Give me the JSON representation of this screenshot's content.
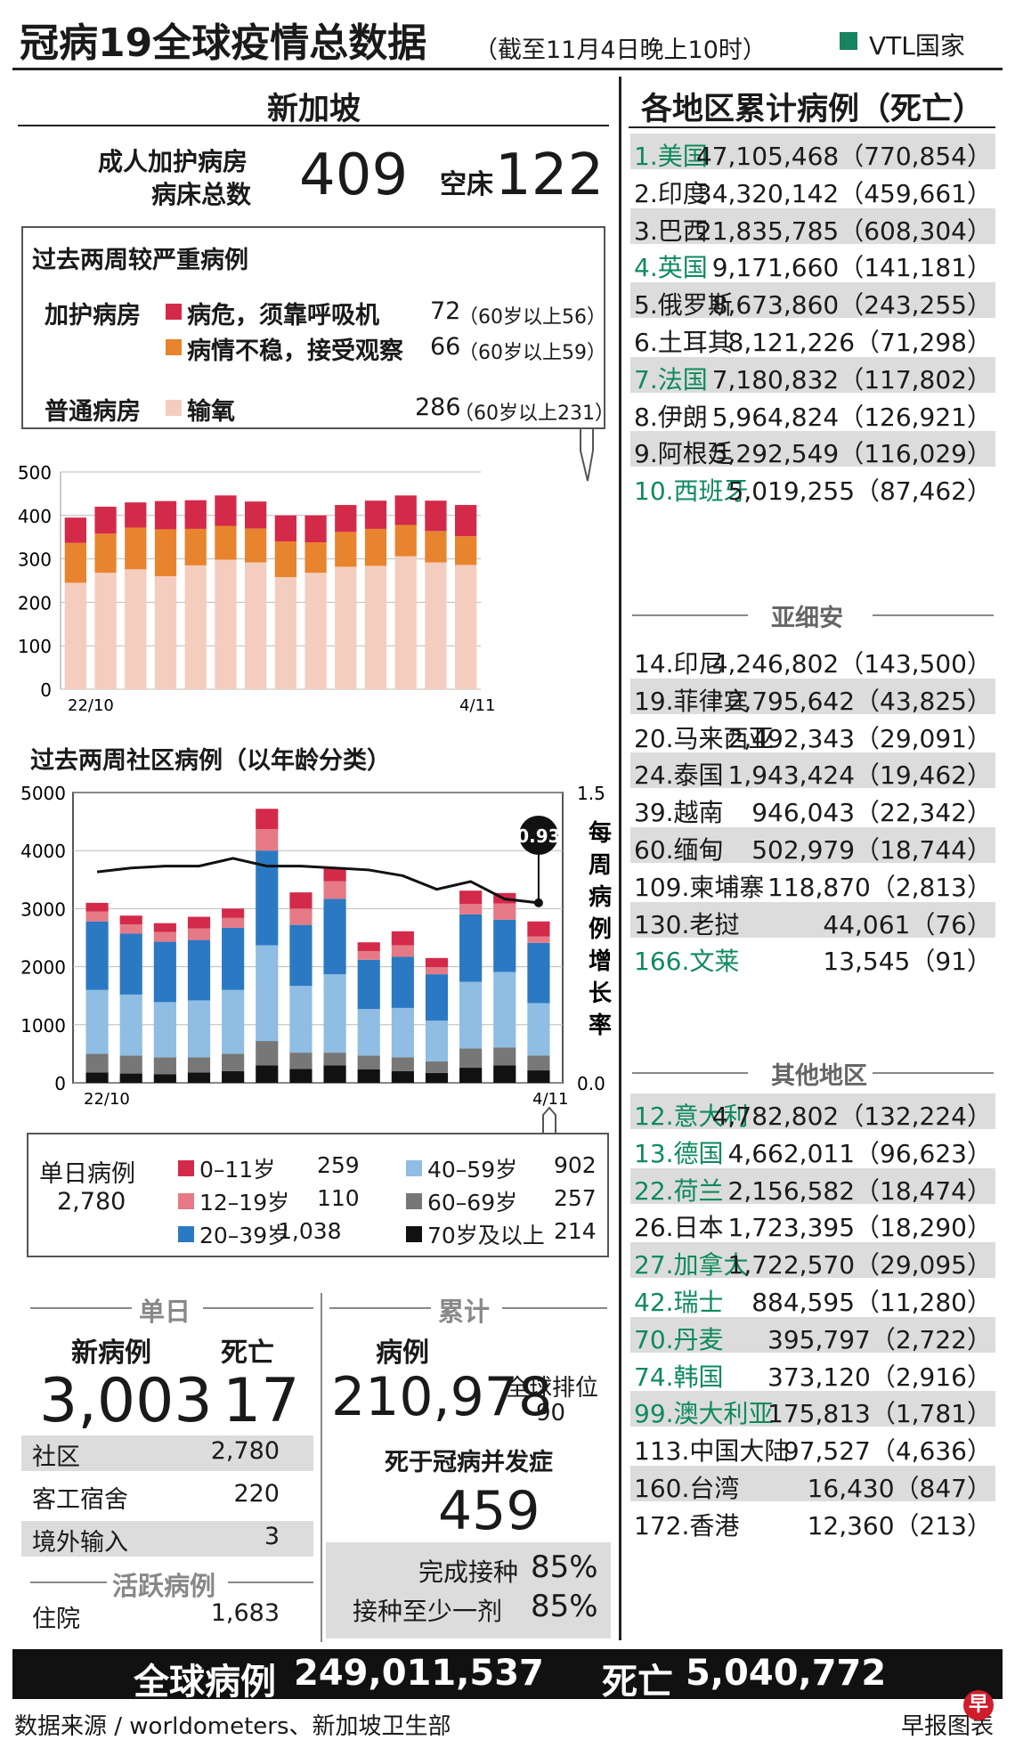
{
  "header": {
    "title": "冠病19全球疫情总数据",
    "subtitle": "（截至11月4日晚上10时）",
    "vtl_legend": "VTL国家",
    "vtl_color": "#17845d"
  },
  "singapore": {
    "title": "新加坡",
    "icu_label_1": "成人加护病房",
    "icu_label_2": "病床总数",
    "icu_total": "409",
    "empty_label": "空床",
    "empty_beds": "122"
  },
  "severe": {
    "title": "过去两周较严重病例",
    "icu_group": "加护病房",
    "ward_group": "普通病房",
    "items": [
      {
        "label": "病危，须靠呼吸机",
        "value": "72",
        "note": "（60岁以上56）",
        "color": "#d42a4a"
      },
      {
        "label": "病情不稳，接受观察",
        "value": "66",
        "note": "（60岁以上59）",
        "color": "#e8842e"
      },
      {
        "label": "输氧",
        "value": "286",
        "note": "（60岁以上231）",
        "color": "#f4cdbf"
      }
    ]
  },
  "chart_data": [
    {
      "type": "bar",
      "stacked": true,
      "x_start_label": "22/10",
      "x_end_label": "4/11",
      "ylim": [
        0,
        500
      ],
      "yticks": [
        "0",
        "100",
        "200",
        "300",
        "400",
        "500"
      ],
      "grid": true,
      "series": [
        {
          "name": "输氧",
          "color": "#f4cdbf",
          "values": [
            245,
            268,
            276,
            260,
            285,
            298,
            292,
            258,
            268,
            282,
            284,
            306,
            292,
            286
          ]
        },
        {
          "name": "病情不稳，接受观察",
          "color": "#e8842e",
          "values": [
            92,
            90,
            96,
            108,
            84,
            78,
            78,
            82,
            70,
            80,
            85,
            72,
            72,
            66
          ]
        },
        {
          "name": "病危，须靠呼吸机",
          "color": "#d42a4a",
          "values": [
            58,
            62,
            58,
            65,
            66,
            70,
            62,
            60,
            62,
            62,
            65,
            68,
            70,
            72
          ]
        }
      ]
    },
    {
      "type": "bar",
      "stacked": true,
      "title": "过去两周社区病例（以年龄分类）",
      "x_start_label": "22/10",
      "x_end_label": "4/11",
      "ylim": [
        0,
        5000
      ],
      "yticks": [
        "0",
        "1000",
        "2000",
        "3000",
        "4000",
        "5000"
      ],
      "y2lim": [
        0,
        1.5
      ],
      "y2ticks": [
        "0.0",
        "1.5"
      ],
      "y2label": "每周病例增长率",
      "grid": true,
      "series": [
        {
          "name": "70岁及以上",
          "color": "#111111",
          "values": [
            180,
            160,
            150,
            180,
            200,
            300,
            240,
            300,
            230,
            200,
            170,
            260,
            300,
            214
          ]
        },
        {
          "name": "60-69岁",
          "color": "#777777",
          "values": [
            320,
            310,
            290,
            260,
            300,
            420,
            280,
            220,
            240,
            240,
            200,
            330,
            310,
            257
          ]
        },
        {
          "name": "40-59岁",
          "color": "#8fbde3",
          "values": [
            1100,
            1050,
            950,
            980,
            1100,
            1650,
            1150,
            1350,
            800,
            850,
            700,
            1150,
            1300,
            902
          ]
        },
        {
          "name": "20-39岁",
          "color": "#2b79c2",
          "values": [
            1180,
            1050,
            1040,
            1040,
            1070,
            1630,
            1050,
            1300,
            850,
            880,
            800,
            1160,
            900,
            1038
          ]
        },
        {
          "name": "12-19岁",
          "color": "#e57a86",
          "values": [
            170,
            160,
            170,
            200,
            170,
            370,
            280,
            300,
            150,
            200,
            120,
            180,
            280,
            110
          ]
        },
        {
          "name": "0-11岁",
          "color": "#d42a4a",
          "values": [
            150,
            150,
            150,
            200,
            160,
            350,
            280,
            230,
            150,
            240,
            160,
            230,
            180,
            259
          ]
        }
      ],
      "growth_rate": [
        1.09,
        1.11,
        1.12,
        1.12,
        1.16,
        1.12,
        1.12,
        1.11,
        1.1,
        1.07,
        1.0,
        1.04,
        0.95,
        0.93
      ],
      "growth_callout": "0.93"
    }
  ],
  "age_legend": {
    "title": "单日病例",
    "total": "2,780",
    "items": [
      {
        "label": "0–11岁",
        "value": "259",
        "color": "#d42a4a"
      },
      {
        "label": "12–19岁",
        "value": "110",
        "color": "#e57a86"
      },
      {
        "label": "20–39岁",
        "value": "1,038",
        "color": "#2b79c2"
      },
      {
        "label": "40–59岁",
        "value": "902",
        "color": "#8fbde3"
      },
      {
        "label": "60–69岁",
        "value": "257",
        "color": "#777777"
      },
      {
        "label": "70岁及以上",
        "value": "214",
        "color": "#111111"
      }
    ]
  },
  "daily": {
    "title": "单日",
    "new_label": "新病例",
    "new_value": "3,003",
    "death_label": "死亡",
    "death_value": "17",
    "rows": [
      {
        "label": "社区",
        "value": "2,780"
      },
      {
        "label": "客工宿舍",
        "value": "220"
      },
      {
        "label": "境外输入",
        "value": "3"
      }
    ],
    "active_title": "活跃病例",
    "hosp_label": "住院",
    "hosp_value": "1,683"
  },
  "cumulative": {
    "title": "累计",
    "cases_label": "病例",
    "cases_value": "210,978",
    "rank_label": "全球排位",
    "rank_value": "90",
    "deaths_label": "死于冠病并发症",
    "deaths_value": "459",
    "vacc_full_label": "完成接种",
    "vacc_full_value": "85%",
    "vacc_one_label": "接种至少一剂",
    "vacc_one_value": "85%"
  },
  "regions": {
    "title": "各地区累计病例（死亡）",
    "top": [
      {
        "name": "1.美国",
        "cases": "47,105,468",
        "deaths": "770,854",
        "vtl": true
      },
      {
        "name": "2.印度",
        "cases": "34,320,142",
        "deaths": "459,661",
        "vtl": false
      },
      {
        "name": "3.巴西",
        "cases": "21,835,785",
        "deaths": "608,304",
        "vtl": false
      },
      {
        "name": "4.英国",
        "cases": "9,171,660",
        "deaths": "141,181",
        "vtl": true
      },
      {
        "name": "5.俄罗斯",
        "cases": "8,673,860",
        "deaths": "243,255",
        "vtl": false
      },
      {
        "name": "6.土耳其",
        "cases": "8,121,226",
        "deaths": "71,298",
        "vtl": false
      },
      {
        "name": "7.法国",
        "cases": "7,180,832",
        "deaths": "117,802",
        "vtl": true
      },
      {
        "name": "8.伊朗",
        "cases": "5,964,824",
        "deaths": "126,921",
        "vtl": false
      },
      {
        "name": "9.阿根廷",
        "cases": "5,292,549",
        "deaths": "116,029",
        "vtl": false
      },
      {
        "name": "10.西班牙",
        "cases": "5,019,255",
        "deaths": "87,462",
        "vtl": true
      }
    ],
    "asean_title": "亚细安",
    "asean": [
      {
        "name": "14.印尼",
        "cases": "4,246,802",
        "deaths": "143,500",
        "vtl": false
      },
      {
        "name": "19.菲律宾",
        "cases": "2,795,642",
        "deaths": "43,825",
        "vtl": false
      },
      {
        "name": "20.马来西亚",
        "cases": "2,492,343",
        "deaths": "29,091",
        "vtl": false
      },
      {
        "name": "24.泰国",
        "cases": "1,943,424",
        "deaths": "19,462",
        "vtl": false
      },
      {
        "name": "39.越南",
        "cases": "946,043",
        "deaths": "22,342",
        "vtl": false
      },
      {
        "name": "60.缅甸",
        "cases": "502,979",
        "deaths": "18,744",
        "vtl": false
      },
      {
        "name": "109.柬埔寨",
        "cases": "118,870",
        "deaths": "2,813",
        "vtl": false
      },
      {
        "name": "130.老挝",
        "cases": "44,061",
        "deaths": "76",
        "vtl": false
      },
      {
        "name": "166.文莱",
        "cases": "13,545",
        "deaths": "91",
        "vtl": true
      }
    ],
    "other_title": "其他地区",
    "other": [
      {
        "name": "12.意大利",
        "cases": "4,782,802",
        "deaths": "132,224",
        "vtl": true
      },
      {
        "name": "13.德国",
        "cases": "4,662,011",
        "deaths": "96,623",
        "vtl": true
      },
      {
        "name": "22.荷兰",
        "cases": "2,156,582",
        "deaths": "18,474",
        "vtl": true
      },
      {
        "name": "26.日本",
        "cases": "1,723,395",
        "deaths": "18,290",
        "vtl": false
      },
      {
        "name": "27.加拿大",
        "cases": "1,722,570",
        "deaths": "29,095",
        "vtl": true
      },
      {
        "name": "42.瑞士",
        "cases": "884,595",
        "deaths": "11,280",
        "vtl": true
      },
      {
        "name": "70.丹麦",
        "cases": "395,797",
        "deaths": "2,722",
        "vtl": true
      },
      {
        "name": "74.韩国",
        "cases": "373,120",
        "deaths": "2,916",
        "vtl": true
      },
      {
        "name": "99.澳大利亚",
        "cases": "175,813",
        "deaths": "1,781",
        "vtl": true
      },
      {
        "name": "113.中国大陆",
        "cases": "97,527",
        "deaths": "4,636",
        "vtl": false
      },
      {
        "name": "160.台湾",
        "cases": "16,430",
        "deaths": "847",
        "vtl": false
      },
      {
        "name": "172.香港",
        "cases": "12,360",
        "deaths": "213",
        "vtl": false
      }
    ]
  },
  "global": {
    "cases_label": "全球病例",
    "cases_value": "249,011,537",
    "deaths_label": "死亡",
    "deaths_value": "5,040,772"
  },
  "footer": {
    "source": "数据来源 / worldometers、新加坡卫生部",
    "credit": "早报图表",
    "logo_char": "早"
  }
}
